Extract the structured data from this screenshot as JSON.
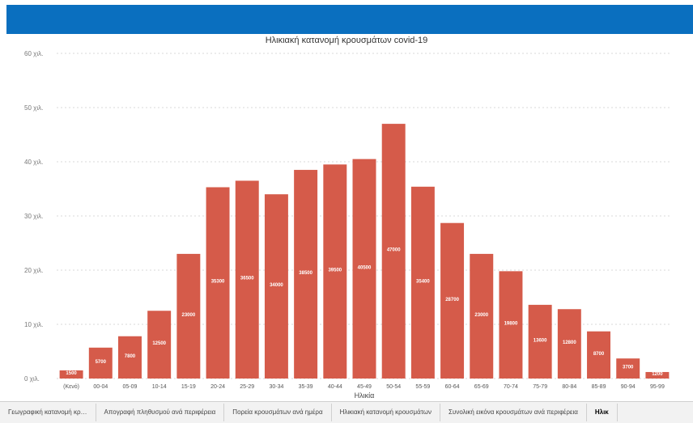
{
  "header": {
    "color": "#0a6fbf"
  },
  "chart_data": {
    "type": "bar",
    "title": "Ηλικιακή κατανομή κρουσμάτων covid-19",
    "xlabel": "Ηλικία",
    "ylabel": "",
    "categories": [
      "(Κενό)",
      "00-04",
      "05-09",
      "10-14",
      "15-19",
      "20-24",
      "25-29",
      "30-34",
      "35-39",
      "40-44",
      "45-49",
      "50-54",
      "55-59",
      "60-64",
      "65-69",
      "70-74",
      "75-79",
      "80-84",
      "85-89",
      "90-94",
      "95-99"
    ],
    "values": [
      1500,
      5700,
      7800,
      12500,
      23000,
      35300,
      36500,
      34000,
      38500,
      39500,
      40500,
      47000,
      35400,
      28700,
      23000,
      19800,
      13600,
      12800,
      8700,
      3700,
      1200
    ],
    "labels": [
      "1500",
      "5700",
      "7800",
      "12500",
      "23000",
      "35300",
      "36500",
      "34000",
      "38500",
      "39500",
      "40500",
      "47000",
      "35400",
      "28700",
      "23000",
      "19800",
      "13600",
      "12800",
      "8700",
      "3700",
      "1200"
    ],
    "ylim": [
      0,
      60000
    ],
    "yticks": [
      0,
      10000,
      20000,
      30000,
      40000,
      50000,
      60000
    ],
    "ytick_labels": [
      "0 χιλ.",
      "10 χιλ.",
      "20 χιλ.",
      "30 χιλ.",
      "40 χιλ.",
      "50 χιλ.",
      "60 χιλ."
    ],
    "bar_color": "#d55b4a",
    "grid": true
  },
  "tabs": [
    {
      "label": "Γεωγραφική κατανομή κρ…",
      "active": false
    },
    {
      "label": "Απογραφή πληθυσμού ανά περιφέρεια",
      "active": false
    },
    {
      "label": "Πορεία κρουσμάτων ανά ημέρα",
      "active": false
    },
    {
      "label": "Ηλικιακή κατανομή κρουσμάτων",
      "active": false
    },
    {
      "label": "Συνολική εικόνα κρουσμάτων ανά περιφέρεια",
      "active": false
    },
    {
      "label": "Ηλικ",
      "active": true
    }
  ]
}
